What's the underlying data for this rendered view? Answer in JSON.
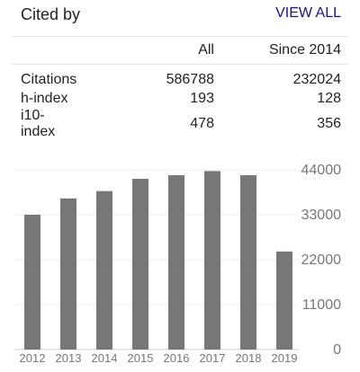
{
  "header": {
    "title": "Cited by",
    "view_all": "VIEW ALL"
  },
  "table": {
    "columns": [
      "",
      "All",
      "Since 2014"
    ],
    "rows": [
      {
        "metric": "Citations",
        "all": "586788",
        "since": "232024"
      },
      {
        "metric": "h-index",
        "all": "193",
        "since": "128"
      },
      {
        "metric": "i10-index",
        "all": "478",
        "since": "356"
      }
    ]
  },
  "chart_data": {
    "type": "bar",
    "categories": [
      "2012",
      "2013",
      "2014",
      "2015",
      "2016",
      "2017",
      "2018",
      "2019"
    ],
    "values": [
      33000,
      37000,
      38800,
      41800,
      42700,
      43700,
      42700,
      24000
    ],
    "yticks": [
      "44000",
      "33000",
      "22000",
      "11000",
      "0"
    ],
    "ylim": [
      0,
      44000
    ],
    "grid": true,
    "bar_color": "#777777",
    "title": "",
    "xlabel": "",
    "ylabel": ""
  }
}
